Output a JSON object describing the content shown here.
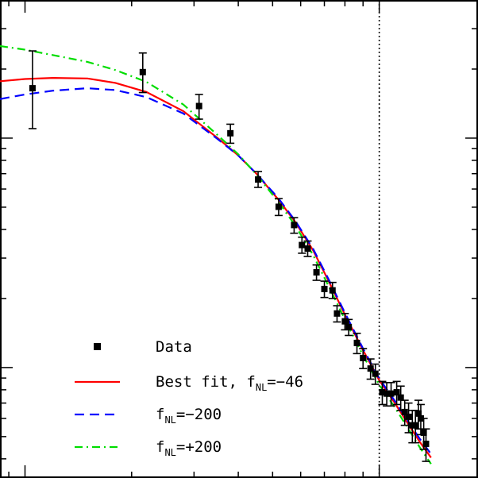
{
  "chart_data": {
    "type": "scatter",
    "x_scale": "log",
    "y_scale": "log",
    "xlim": [
      0.0085,
      0.19
    ],
    "ylim": [
      330,
      40000
    ],
    "vline_x": 0.1,
    "grid": false,
    "legend_position": "bottom-left",
    "series": [
      {
        "name": "Data",
        "kind": "points",
        "color": "#000000",
        "points": [
          {
            "x": 0.0105,
            "y": 16500,
            "ylo": 11000,
            "yhi": 24000
          },
          {
            "x": 0.0215,
            "y": 19400,
            "ylo": 15800,
            "yhi": 23500
          },
          {
            "x": 0.031,
            "y": 13800,
            "ylo": 12100,
            "yhi": 15500
          },
          {
            "x": 0.038,
            "y": 10500,
            "ylo": 9500,
            "yhi": 11500
          },
          {
            "x": 0.0455,
            "y": 6600,
            "ylo": 6100,
            "yhi": 7150
          },
          {
            "x": 0.052,
            "y": 5020,
            "ylo": 4600,
            "yhi": 5450
          },
          {
            "x": 0.0575,
            "y": 4180,
            "ylo": 3850,
            "yhi": 4500
          },
          {
            "x": 0.0605,
            "y": 3420,
            "ylo": 3150,
            "yhi": 3700
          },
          {
            "x": 0.0628,
            "y": 3300,
            "ylo": 3050,
            "yhi": 3560
          },
          {
            "x": 0.0665,
            "y": 2600,
            "ylo": 2400,
            "yhi": 2800
          },
          {
            "x": 0.07,
            "y": 2200,
            "ylo": 2020,
            "yhi": 2380
          },
          {
            "x": 0.0738,
            "y": 2170,
            "ylo": 2000,
            "yhi": 2350
          },
          {
            "x": 0.076,
            "y": 1720,
            "ylo": 1580,
            "yhi": 1860
          },
          {
            "x": 0.08,
            "y": 1590,
            "ylo": 1460,
            "yhi": 1720
          },
          {
            "x": 0.082,
            "y": 1500,
            "ylo": 1380,
            "yhi": 1620
          },
          {
            "x": 0.0865,
            "y": 1280,
            "ylo": 1150,
            "yhi": 1410
          },
          {
            "x": 0.09,
            "y": 1100,
            "ylo": 990,
            "yhi": 1210
          },
          {
            "x": 0.0945,
            "y": 990,
            "ylo": 890,
            "yhi": 1090
          },
          {
            "x": 0.0975,
            "y": 940,
            "ylo": 845,
            "yhi": 1035
          },
          {
            "x": 0.102,
            "y": 780,
            "ylo": 690,
            "yhi": 870
          },
          {
            "x": 0.105,
            "y": 770,
            "ylo": 680,
            "yhi": 860
          },
          {
            "x": 0.108,
            "y": 770,
            "ylo": 680,
            "yhi": 860
          },
          {
            "x": 0.112,
            "y": 780,
            "ylo": 690,
            "yhi": 870
          },
          {
            "x": 0.115,
            "y": 740,
            "ylo": 650,
            "yhi": 830
          },
          {
            "x": 0.118,
            "y": 640,
            "ylo": 560,
            "yhi": 720
          },
          {
            "x": 0.121,
            "y": 610,
            "ylo": 520,
            "yhi": 700
          },
          {
            "x": 0.124,
            "y": 560,
            "ylo": 470,
            "yhi": 650
          },
          {
            "x": 0.1265,
            "y": 560,
            "ylo": 470,
            "yhi": 650
          },
          {
            "x": 0.129,
            "y": 630,
            "ylo": 540,
            "yhi": 720
          },
          {
            "x": 0.131,
            "y": 600,
            "ylo": 510,
            "yhi": 690
          },
          {
            "x": 0.1335,
            "y": 520,
            "ylo": 440,
            "yhi": 600
          },
          {
            "x": 0.1355,
            "y": 465,
            "ylo": 390,
            "yhi": 540
          }
        ]
      },
      {
        "name": "Best fit, f_NL=-46",
        "kind": "line",
        "color": "#ff0000",
        "dash": "solid",
        "points": [
          {
            "x": 0.0085,
            "y": 17700
          },
          {
            "x": 0.01,
            "y": 18100
          },
          {
            "x": 0.012,
            "y": 18300
          },
          {
            "x": 0.015,
            "y": 18200
          },
          {
            "x": 0.018,
            "y": 17400
          },
          {
            "x": 0.022,
            "y": 15900
          },
          {
            "x": 0.028,
            "y": 13100
          },
          {
            "x": 0.035,
            "y": 10000
          },
          {
            "x": 0.04,
            "y": 8400
          },
          {
            "x": 0.045,
            "y": 7000
          },
          {
            "x": 0.052,
            "y": 5380
          },
          {
            "x": 0.058,
            "y": 4300
          },
          {
            "x": 0.065,
            "y": 3250
          },
          {
            "x": 0.072,
            "y": 2380
          },
          {
            "x": 0.08,
            "y": 1700
          },
          {
            "x": 0.09,
            "y": 1190
          },
          {
            "x": 0.1,
            "y": 880
          },
          {
            "x": 0.11,
            "y": 710
          },
          {
            "x": 0.12,
            "y": 575
          },
          {
            "x": 0.13,
            "y": 475
          },
          {
            "x": 0.14,
            "y": 405
          }
        ]
      },
      {
        "name": "f_NL=-200",
        "kind": "line",
        "color": "#0000ff",
        "dash": "dashed",
        "points": [
          {
            "x": 0.0085,
            "y": 14800
          },
          {
            "x": 0.01,
            "y": 15500
          },
          {
            "x": 0.012,
            "y": 16100
          },
          {
            "x": 0.015,
            "y": 16500
          },
          {
            "x": 0.018,
            "y": 16200
          },
          {
            "x": 0.022,
            "y": 15100
          },
          {
            "x": 0.028,
            "y": 12800
          },
          {
            "x": 0.035,
            "y": 9900
          },
          {
            "x": 0.04,
            "y": 8400
          },
          {
            "x": 0.045,
            "y": 7000
          },
          {
            "x": 0.052,
            "y": 5450
          },
          {
            "x": 0.058,
            "y": 4350
          },
          {
            "x": 0.065,
            "y": 3300
          },
          {
            "x": 0.072,
            "y": 2420
          },
          {
            "x": 0.08,
            "y": 1730
          },
          {
            "x": 0.09,
            "y": 1210
          },
          {
            "x": 0.1,
            "y": 895
          },
          {
            "x": 0.11,
            "y": 725
          },
          {
            "x": 0.12,
            "y": 590
          },
          {
            "x": 0.13,
            "y": 490
          },
          {
            "x": 0.14,
            "y": 420
          }
        ]
      },
      {
        "name": "f_NL=+200",
        "kind": "line",
        "color": "#00dd00",
        "dash": "dash-dot",
        "points": [
          {
            "x": 0.0085,
            "y": 25200
          },
          {
            "x": 0.01,
            "y": 24300
          },
          {
            "x": 0.012,
            "y": 23000
          },
          {
            "x": 0.015,
            "y": 21500
          },
          {
            "x": 0.018,
            "y": 19800
          },
          {
            "x": 0.022,
            "y": 17600
          },
          {
            "x": 0.028,
            "y": 14000
          },
          {
            "x": 0.035,
            "y": 10300
          },
          {
            "x": 0.04,
            "y": 8500
          },
          {
            "x": 0.045,
            "y": 6950
          },
          {
            "x": 0.052,
            "y": 5250
          },
          {
            "x": 0.058,
            "y": 4150
          },
          {
            "x": 0.065,
            "y": 3100
          },
          {
            "x": 0.072,
            "y": 2260
          },
          {
            "x": 0.08,
            "y": 1620
          },
          {
            "x": 0.09,
            "y": 1130
          },
          {
            "x": 0.1,
            "y": 840
          },
          {
            "x": 0.11,
            "y": 680
          },
          {
            "x": 0.12,
            "y": 550
          },
          {
            "x": 0.13,
            "y": 450
          },
          {
            "x": 0.14,
            "y": 380
          }
        ]
      }
    ],
    "legend": [
      {
        "kind": "marker",
        "color": "#000000",
        "label": "Data",
        "label_main": "Data",
        "label_sub": "",
        "label_tail": ""
      },
      {
        "kind": "line",
        "color": "#ff0000",
        "dash": "solid",
        "label": "Best fit, f_NL=-46",
        "label_main": "Best fit, f",
        "label_sub": "NL",
        "label_tail": "=−46"
      },
      {
        "kind": "line",
        "color": "#0000ff",
        "dash": "dashed",
        "label": "f_NL=-200",
        "label_main": "f",
        "label_sub": "NL",
        "label_tail": "=−200"
      },
      {
        "kind": "line",
        "color": "#00dd00",
        "dash": "dash-dot",
        "label": "f_NL=+200",
        "label_main": "f",
        "label_sub": "NL",
        "label_tail": "=+200"
      }
    ]
  }
}
